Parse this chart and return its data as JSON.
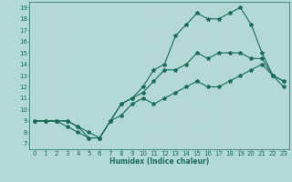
{
  "title": "",
  "xlabel": "Humidex (Indice chaleur)",
  "background_color": "#b2d8d8",
  "grid_color": "#bcd4d4",
  "line_color": "#1a6b5a",
  "xlim": [
    -0.5,
    23.5
  ],
  "ylim": [
    6.5,
    19.5
  ],
  "xticks": [
    0,
    1,
    2,
    3,
    4,
    5,
    6,
    7,
    8,
    9,
    10,
    11,
    12,
    13,
    14,
    15,
    16,
    17,
    18,
    19,
    20,
    21,
    22,
    23
  ],
  "yticks": [
    7,
    8,
    9,
    10,
    11,
    12,
    13,
    14,
    15,
    16,
    17,
    18,
    19
  ],
  "line1_x": [
    0,
    1,
    2,
    3,
    4,
    5,
    6,
    7,
    8,
    9,
    10,
    11,
    12,
    13,
    14,
    15,
    16,
    17,
    18,
    19,
    20,
    21,
    22,
    23
  ],
  "line1_y": [
    9,
    9,
    9,
    9,
    8.5,
    8,
    7.5,
    9,
    9.5,
    10.5,
    11,
    10.5,
    11,
    11.5,
    12,
    12.5,
    12,
    12,
    12.5,
    13,
    13.5,
    14,
    13,
    12.5
  ],
  "line2_x": [
    0,
    1,
    2,
    3,
    4,
    5,
    6,
    7,
    8,
    9,
    10,
    11,
    12,
    13,
    14,
    15,
    16,
    17,
    18,
    19,
    20,
    21,
    22,
    23
  ],
  "line2_y": [
    9,
    9,
    9,
    8.5,
    8,
    7.5,
    7.5,
    9,
    10.5,
    11,
    11.5,
    12.5,
    13.5,
    13.5,
    14,
    15,
    14.5,
    15,
    15,
    15,
    14.5,
    14.5,
    13,
    12.5
  ],
  "line3_x": [
    0,
    1,
    2,
    3,
    4,
    5,
    6,
    7,
    8,
    9,
    10,
    11,
    12,
    13,
    14,
    15,
    16,
    17,
    18,
    19,
    20,
    21,
    22,
    23
  ],
  "line3_y": [
    9,
    9,
    9,
    9,
    8.5,
    7.5,
    7.5,
    9,
    10.5,
    11,
    12,
    13.5,
    14,
    16.5,
    17.5,
    18.5,
    18,
    18,
    18.5,
    19,
    17.5,
    15,
    13,
    12
  ],
  "marker": "*",
  "markersize": 3,
  "linewidth": 0.8
}
